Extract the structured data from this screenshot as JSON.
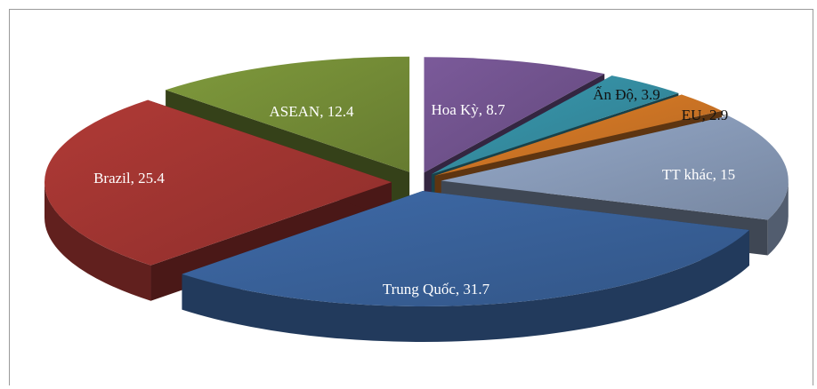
{
  "chart_data": {
    "type": "pie",
    "style": "3d-exploded",
    "legend": "none",
    "slices": [
      {
        "label": "Hoa Kỳ",
        "value": 8.7,
        "color": "#7b5a9a",
        "label_text": "Hoa Kỳ, 8.7",
        "label_color": "#ffffff"
      },
      {
        "label": "Ấn Độ",
        "value": 3.9,
        "color": "#3a9ab0",
        "label_text": "Ấn Độ, 3.9",
        "label_color": "#111111"
      },
      {
        "label": "EU",
        "value": 2.9,
        "color": "#e07f28",
        "label_text": "EU, 2.9",
        "label_color": "#111111"
      },
      {
        "label": "TT khác",
        "value": 15,
        "color": "#95a9c9",
        "label_text": "TT khác, 15",
        "label_color": "#ffffff"
      },
      {
        "label": "Trung Quốc",
        "value": 31.7,
        "color": "#3e6aa8",
        "label_text": "Trung Quốc, 31.7",
        "label_color": "#ffffff"
      },
      {
        "label": "Brazil",
        "value": 25.4,
        "color": "#b03a36",
        "label_text": "Brazil, 25.4",
        "label_color": "#ffffff"
      },
      {
        "label": "ASEAN",
        "value": 12.4,
        "color": "#7f9a3c",
        "label_text": "ASEAN, 12.4",
        "label_color": "#ffffff"
      }
    ]
  }
}
